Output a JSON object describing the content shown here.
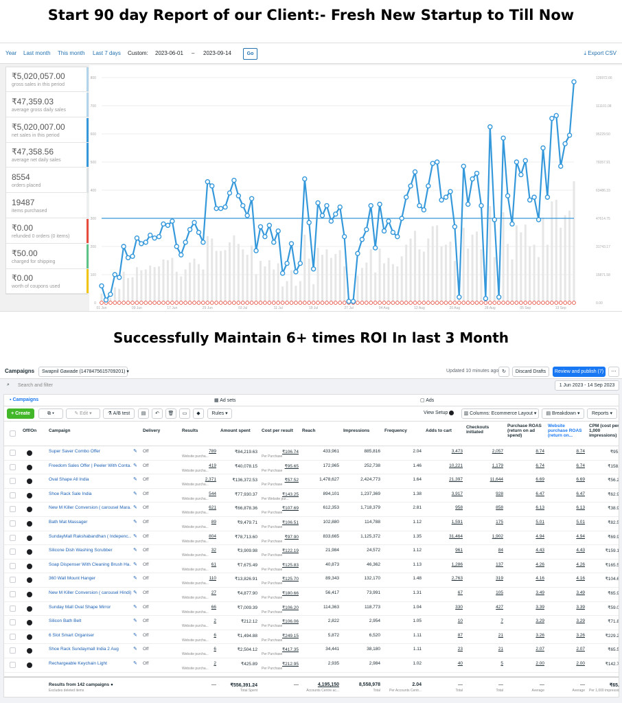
{
  "titles": {
    "top": "Start 90 day Report of our Client:- Fresh New Startup to Till Now",
    "middle": "Successfully Maintain 6+ times ROI In last 3 Month"
  },
  "report": {
    "ranges": [
      "Year",
      "Last month",
      "This month",
      "Last 7 days"
    ],
    "custom_label": "Custom:",
    "date_from": "2023-06-01",
    "date_sep": "–",
    "date_to": "2023-09-14",
    "go_label": "Go",
    "export_label": "Export CSV",
    "stats": [
      {
        "value": "₹5,020,057.00",
        "label": "gross sales in this period",
        "color": "#b1d4ea"
      },
      {
        "value": "₹47,359.03",
        "label": "average gross daily sales",
        "color": "#b1d4ea"
      },
      {
        "value": "₹5,020,007.00",
        "label": "net sales in this period",
        "color": "#3498db"
      },
      {
        "value": "₹47,358.56",
        "label": "average net daily sales",
        "color": "#3498db"
      },
      {
        "value": "8554",
        "label": "orders placed",
        "color": "#dbe1e3"
      },
      {
        "value": "19487",
        "label": "items purchased",
        "color": "#ecf0f1"
      },
      {
        "value": "₹0.00",
        "label": "refunded 0 orders (0 items)",
        "color": "#e74c3c"
      },
      {
        "value": "₹50.00",
        "label": "charged for shipping",
        "color": "#5cc488"
      },
      {
        "value": "₹0.00",
        "label": "worth of coupons used",
        "color": "#f1c40f"
      }
    ]
  },
  "chart_data": {
    "type": "line",
    "left_axis": [
      0,
      100,
      200,
      300,
      400,
      500,
      600,
      700,
      800
    ],
    "right_axis": [
      "0.00",
      "15871.58",
      "31743.17",
      "47614.75",
      "63486.33",
      "79357.91",
      "95229.50",
      "111101.08",
      "126972.66"
    ],
    "x_ticks": [
      "01 Jun",
      "09 Jun",
      "17 Jun",
      "25 Jun",
      "03 Jul",
      "11 Jul",
      "19 Jul",
      "27 Jul",
      "04 Aug",
      "12 Aug",
      "20 Aug",
      "28 Aug",
      "05 Sep",
      "13 Sep"
    ],
    "average_line": 300,
    "series": [
      {
        "values": [
          60,
          10,
          30,
          100,
          90,
          200,
          160,
          165,
          230,
          210,
          215,
          240,
          230,
          235,
          280,
          275,
          290,
          200,
          170,
          215,
          260,
          285,
          250,
          215,
          430,
          415,
          335,
          335,
          340,
          390,
          435,
          380,
          345,
          310,
          370,
          185,
          270,
          235,
          275,
          215,
          255,
          105,
          140,
          210,
          110,
          140,
          440,
          285,
          120,
          355,
          310,
          345,
          290,
          315,
          340,
          235,
          5,
          5,
          175,
          225,
          260,
          345,
          195,
          350,
          255,
          290,
          250,
          235,
          300,
          375,
          415,
          465,
          345,
          330,
          415,
          495,
          500,
          365,
          375,
          395,
          270,
          20,
          485,
          350,
          440,
          460,
          345,
          15,
          625,
          295,
          20,
          585,
          380,
          280,
          500,
          455,
          505,
          365,
          375,
          295,
          550,
          375,
          655,
          665,
          485,
          565,
          595,
          785
        ]
      }
    ]
  },
  "ads": {
    "title": "Campaigns",
    "account": "Swapnil Gawade (1478475615709201)",
    "updated": "Updated 10 minutes ago",
    "discard": "Discard Drafts",
    "publish": "Review and publish (7)",
    "search_placeholder": "Search and filter",
    "date_range": "1 Jun 2023 - 14 Sep 2023",
    "tabs": [
      "Campaigns",
      "Ad sets",
      "Ads"
    ],
    "create": "Create",
    "edit": "Edit",
    "abtest": "A/B test",
    "rules": "Rules",
    "view_setup": "View Setup",
    "columns": "Columns: Ecommerce Layout",
    "breakdown": "Breakdown",
    "reports": "Reports",
    "headers": [
      "Off/On",
      "Campaign",
      "Delivery",
      "Results",
      "Amount spent",
      "Cost per result",
      "Reach",
      "Impressions",
      "Frequency",
      "Adds to cart",
      "Checkouts initiated",
      "Purchase ROAS (return on ad spend)",
      "Website purchase ROAS (return on...",
      "CPM (cost per 1,000 impressions)"
    ],
    "rows": [
      {
        "name": "Super Saver Combo Offer",
        "delivery": "Off",
        "results": "789",
        "rsub": "Website purcha...",
        "spent": "₹84,219.63",
        "cpr": "₹106.74",
        "cprsub": "Per Purchase",
        "reach": "433,961",
        "impr": "885,816",
        "freq": "2.04",
        "atc": "3,473",
        "chk": "2,057",
        "roas": "8.74",
        "wroas": "8.74",
        "cpm": "₹95."
      },
      {
        "name": "Freedom Sales Offer | Peeler With Conta...",
        "delivery": "Off",
        "results": "419",
        "rsub": "Website purcha...",
        "spent": "₹40,078.15",
        "cpr": "₹95.65",
        "cprsub": "Per Purchase",
        "reach": "172,965",
        "impr": "252,738",
        "freq": "1.46",
        "atc": "10,221",
        "chk": "1,179",
        "roas": "6.74",
        "wroas": "6.74",
        "cpm": "₹158."
      },
      {
        "name": "Oval Shape All India",
        "delivery": "Off",
        "results": "2,371",
        "rsub": "Website purcha...",
        "spent": "₹136,372.53",
        "cpr": "₹57.52",
        "cprsub": "Per Purchase",
        "reach": "1,478,627",
        "impr": "2,424,773",
        "freq": "1.64",
        "atc": "21,397",
        "chk": "11,644",
        "roas": "6.69",
        "wroas": "6.69",
        "cpm": "₹56.2"
      },
      {
        "name": "Shoe Rack Sale India",
        "delivery": "Off",
        "results": "544",
        "rsub": "Website purcha...",
        "spent": "₹77,930.37",
        "cpr": "₹143.25",
        "cprsub": "Per Website pur...",
        "reach": "894,101",
        "impr": "1,237,369",
        "freq": "1.38",
        "atc": "3,917",
        "chk": "928",
        "roas": "6.47",
        "wroas": "6.47",
        "cpm": "₹62.9"
      },
      {
        "name": "New M Killer Conversion ( carousel Mara...",
        "delivery": "Off",
        "results": "621",
        "rsub": "Website purcha...",
        "spent": "₹66,878.36",
        "cpr": "₹107.69",
        "cprsub": "Per Purchase",
        "reach": "612,353",
        "impr": "1,718,379",
        "freq": "2.81",
        "atc": "958",
        "chk": "858",
        "roas": "6.13",
        "wroas": "6.13",
        "cpm": "₹38.9"
      },
      {
        "name": "Bath Mat Massager",
        "delivery": "Off",
        "results": "89",
        "rsub": "Website purcha...",
        "spent": "₹9,479.71",
        "cpr": "₹106.51",
        "cprsub": "Per Purchase",
        "reach": "102,880",
        "impr": "114,788",
        "freq": "1.12",
        "atc": "1,591",
        "chk": "175",
        "roas": "5.01",
        "wroas": "5.01",
        "cpm": "₹82.5"
      },
      {
        "name": "SundayMall Rakshabandhan ( Indepenc...",
        "delivery": "Off",
        "results": "804",
        "rsub": "Website purcha...",
        "spent": "₹78,713.60",
        "cpr": "₹97.90",
        "cprsub": "Per Purchase",
        "reach": "833,665",
        "impr": "1,125,372",
        "freq": "1.35",
        "atc": "31,464",
        "chk": "1,902",
        "roas": "4.94",
        "wroas": "4.94",
        "cpm": "₹69.9"
      },
      {
        "name": "Silicone Dish Washing Scrubber",
        "delivery": "Off",
        "results": "32",
        "rsub": "Website purcha...",
        "spent": "₹3,909.98",
        "cpr": "₹122.19",
        "cprsub": "Per Purchase",
        "reach": "21,984",
        "impr": "24,572",
        "freq": "1.12",
        "atc": "961",
        "chk": "84",
        "roas": "4.43",
        "wroas": "4.43",
        "cpm": "₹159.1"
      },
      {
        "name": "Soap Dispenser With Cleaning Brush Ha...",
        "delivery": "Off",
        "results": "61",
        "rsub": "Website purcha...",
        "spent": "₹7,675.49",
        "cpr": "₹125.83",
        "cprsub": "Per Purchase",
        "reach": "40,873",
        "impr": "46,362",
        "freq": "1.13",
        "atc": "1,286",
        "chk": "137",
        "roas": "4.26",
        "wroas": "4.26",
        "cpm": "₹165.5"
      },
      {
        "name": "360 Wall Mount Hanger",
        "delivery": "Off",
        "results": "110",
        "rsub": "Website purcha...",
        "spent": "₹13,826.91",
        "cpr": "₹125.70",
        "cprsub": "Per Purchase",
        "reach": "89,343",
        "impr": "132,170",
        "freq": "1.48",
        "atc": "2,763",
        "chk": "319",
        "roas": "4.16",
        "wroas": "4.16",
        "cpm": "₹104.6"
      },
      {
        "name": "New M Killer Conversion ( carousel Hindi)",
        "delivery": "Off",
        "results": "27",
        "rsub": "Website purcha...",
        "spent": "₹4,877.90",
        "cpr": "₹180.66",
        "cprsub": "Per Purchase",
        "reach": "56,417",
        "impr": "73,991",
        "freq": "1.31",
        "atc": "67",
        "chk": "105",
        "roas": "3.49",
        "wroas": "3.49",
        "cpm": "₹65.9"
      },
      {
        "name": "Sunday Mall Oval Shape Mirror",
        "delivery": "Off",
        "results": "66",
        "rsub": "Website purcha...",
        "spent": "₹7,009.39",
        "cpr": "₹106.20",
        "cprsub": "Per Purchase",
        "reach": "114,363",
        "impr": "118,773",
        "freq": "1.04",
        "atc": "330",
        "chk": "427",
        "roas": "3.39",
        "wroas": "3.39",
        "cpm": "₹59.0"
      },
      {
        "name": "Silicon Bath Belt",
        "delivery": "Off",
        "results": "2",
        "rsub": "Website purcha...",
        "spent": "₹212.12",
        "cpr": "₹106.06",
        "cprsub": "Per Purchase",
        "reach": "2,822",
        "impr": "2,954",
        "freq": "1.05",
        "atc": "10",
        "chk": "7",
        "roas": "3.29",
        "wroas": "3.29",
        "cpm": "₹71.8"
      },
      {
        "name": "6 Slot Smart Organiser",
        "delivery": "Off",
        "results": "6",
        "rsub": "Website purcha...",
        "spent": "₹1,494.88",
        "cpr": "₹249.15",
        "cprsub": "Per Purchase",
        "reach": "5,872",
        "impr": "6,520",
        "freq": "1.11",
        "atc": "87",
        "chk": "21",
        "roas": "3.26",
        "wroas": "3.26",
        "cpm": "₹229.2"
      },
      {
        "name": "Shoe Rack Sundaymall India 2 Aug",
        "delivery": "Off",
        "results": "6",
        "rsub": "Website purcha...",
        "spent": "₹2,504.12",
        "cpr": "₹417.35",
        "cprsub": "Per Purchase",
        "reach": "34,441",
        "impr": "38,180",
        "freq": "1.11",
        "atc": "23",
        "chk": "21",
        "roas": "2.07",
        "wroas": "2.07",
        "cpm": "₹65.5"
      },
      {
        "name": "Rechargeable Keychain Light",
        "delivery": "Off",
        "results": "2",
        "rsub": "Website purcha...",
        "spent": "₹425.89",
        "cpr": "₹212.95",
        "cprsub": "Per Purchase",
        "reach": "2,935",
        "impr": "2,984",
        "freq": "1.02",
        "atc": "40",
        "chk": "5",
        "roas": "2.00",
        "wroas": "2.00",
        "cpm": "₹142.7"
      }
    ],
    "footer": {
      "label": "Results from 142 campaigns",
      "sub": "Excludes deleted items",
      "results": "—",
      "spent": "₹556,391.24",
      "spent_sub": "Total Spent",
      "cpr": "—",
      "reach": "4,195,150",
      "reach_sub": "Accounts Centre ac...",
      "impr": "8,558,978",
      "impr_sub": "Total",
      "freq": "2.04",
      "freq_sub": "Per Accounts Centr...",
      "atc": "—",
      "atc_sub": "Total",
      "chk": "—",
      "chk_sub": "Total",
      "roas": "—",
      "roas_sub": "Average",
      "wroas": "—",
      "wroas_sub": "Average",
      "cpm": "₹65.",
      "cpm_sub": "Per 1,000 impressic"
    }
  }
}
